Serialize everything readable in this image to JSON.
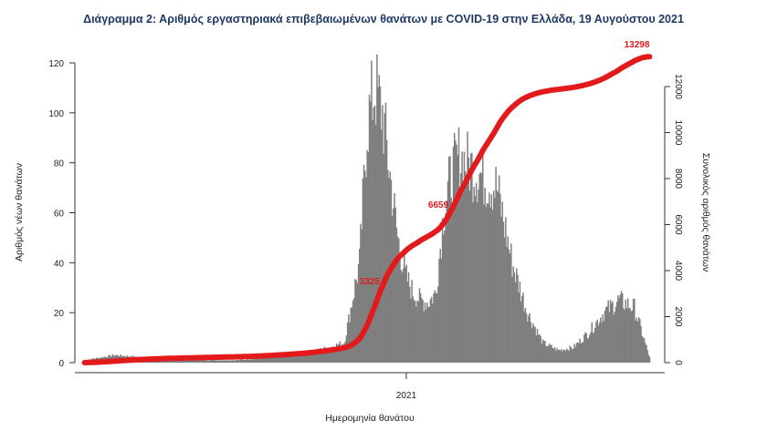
{
  "chart_data": {
    "type": "bar",
    "title": "Διάγραμμα 2: Αριθμός εργαστηριακά επιβεβαιωμένων θανάτων με COVID-19 στην Ελλάδα, 19 Αυγούστου 2021",
    "xlabel": "Ημερομηνία θανάτου",
    "ylabel": "Αριθμός νέων θανάτων",
    "y2label": "Συνολικός αριθμός θανάτων",
    "x_tick_labels": [
      "2021"
    ],
    "y_ticks": [
      0,
      20,
      40,
      60,
      80,
      100,
      120
    ],
    "y2_ticks": [
      0,
      2000,
      4000,
      6000,
      8000,
      10000,
      12000
    ],
    "ylim": [
      0,
      120
    ],
    "y2lim": [
      0,
      12000
    ],
    "grid": false,
    "series": [
      {
        "type": "bar",
        "color": "#7f7f7f",
        "note": "new deaths per day (approximate weekly profile, daily resolution)",
        "profile_days": [
          0,
          28,
          56,
          84,
          112,
          140,
          168,
          196,
          224,
          238,
          252,
          259,
          266,
          273,
          280,
          287,
          294,
          301,
          308,
          315,
          322,
          329,
          336,
          343,
          350,
          364,
          378,
          392,
          406,
          420,
          434,
          448,
          462,
          476,
          490,
          504,
          518
        ],
        "profile_values": [
          1,
          3,
          2,
          1,
          1,
          1,
          2,
          3,
          6,
          8,
          40,
          95,
          110,
          100,
          75,
          50,
          35,
          28,
          25,
          24,
          28,
          60,
          75,
          82,
          80,
          75,
          70,
          40,
          20,
          8,
          5,
          6,
          12,
          20,
          25,
          22,
          2
        ]
      },
      {
        "type": "line",
        "color": "#e31a1c",
        "axis": "right",
        "note": "cumulative deaths",
        "labels": [
          {
            "value": 3325,
            "text": "3325"
          },
          {
            "value": 6659,
            "text": "6659"
          },
          {
            "value": 13298,
            "text": "13298"
          }
        ]
      }
    ]
  }
}
